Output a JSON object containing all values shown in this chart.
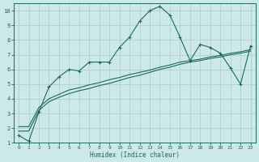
{
  "xlabel": "Humidex (Indice chaleur)",
  "ylabel": "",
  "bg_color": "#cce8e8",
  "grid_color": "#aacccc",
  "line_color": "#1a6b5a",
  "xlim": [
    -0.5,
    23.5
  ],
  "ylim": [
    1,
    10.5
  ],
  "xticks": [
    0,
    1,
    2,
    3,
    4,
    5,
    6,
    7,
    8,
    9,
    10,
    11,
    12,
    13,
    14,
    15,
    16,
    17,
    18,
    19,
    20,
    21,
    22,
    23
  ],
  "yticks": [
    1,
    2,
    3,
    4,
    5,
    6,
    7,
    8,
    9,
    10
  ],
  "main_line_x": [
    0,
    1,
    2,
    3,
    4,
    5,
    6,
    7,
    8,
    9,
    10,
    11,
    12,
    13,
    14,
    15,
    16,
    17,
    18,
    19,
    20,
    21,
    22,
    23
  ],
  "main_line_y": [
    1.5,
    1.1,
    3.1,
    4.8,
    5.5,
    6.0,
    5.9,
    6.5,
    6.5,
    6.5,
    7.5,
    8.2,
    9.3,
    10.0,
    10.3,
    9.7,
    8.2,
    6.6,
    7.7,
    7.5,
    7.1,
    6.1,
    5.0,
    7.6
  ],
  "line2_x": [
    0,
    1,
    2,
    3,
    4,
    5,
    6,
    7,
    8,
    9,
    10,
    11,
    12,
    13,
    14,
    15,
    16,
    17,
    18,
    19,
    20,
    21,
    22,
    23
  ],
  "line2_y": [
    1.8,
    1.8,
    3.2,
    3.8,
    4.1,
    4.35,
    4.55,
    4.7,
    4.9,
    5.05,
    5.25,
    5.45,
    5.6,
    5.8,
    6.0,
    6.15,
    6.35,
    6.5,
    6.6,
    6.75,
    6.85,
    7.0,
    7.1,
    7.25
  ],
  "line3_x": [
    0,
    1,
    2,
    3,
    4,
    5,
    6,
    7,
    8,
    9,
    10,
    11,
    12,
    13,
    14,
    15,
    16,
    17,
    18,
    19,
    20,
    21,
    22,
    23
  ],
  "line3_y": [
    2.1,
    2.1,
    3.4,
    4.0,
    4.3,
    4.6,
    4.75,
    4.95,
    5.1,
    5.3,
    5.45,
    5.65,
    5.8,
    5.95,
    6.15,
    6.3,
    6.5,
    6.6,
    6.7,
    6.85,
    6.95,
    7.1,
    7.2,
    7.35
  ]
}
